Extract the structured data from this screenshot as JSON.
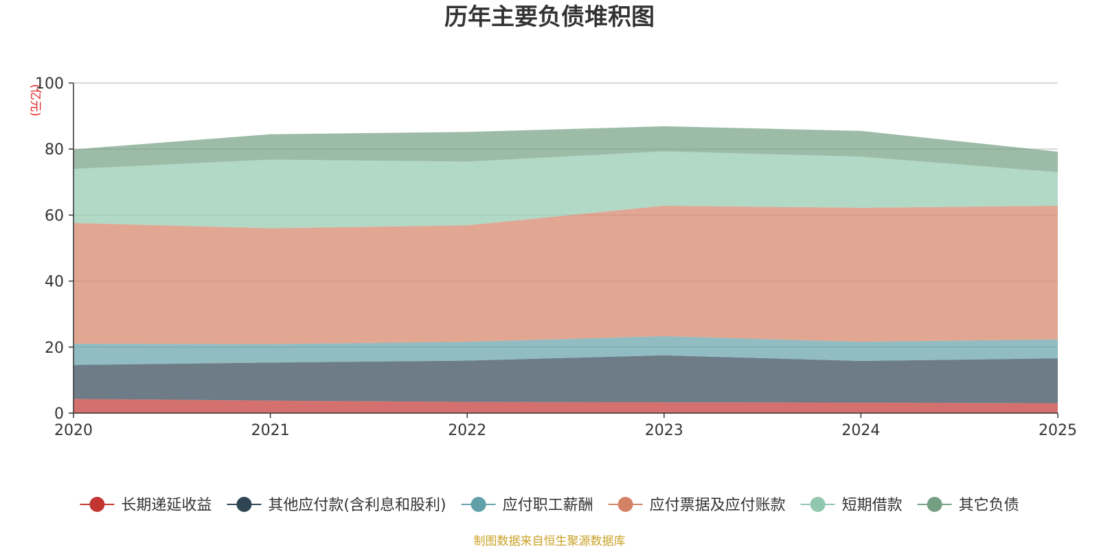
{
  "chart_data": {
    "type": "area",
    "stacked": true,
    "title": "历年主要负债堆积图",
    "unit_label": "(亿元)",
    "source_note": "制图数据来自恒生聚源数据库",
    "xlabel": "",
    "ylabel": "(亿元)",
    "ylim": [
      0,
      100
    ],
    "yticks": [
      0,
      20,
      40,
      60,
      80,
      100
    ],
    "x": [
      "2020",
      "2021",
      "2022",
      "2023",
      "2024",
      "2025"
    ],
    "grid": true,
    "legend_position": "bottom",
    "series": [
      {
        "name": "长期递延收益",
        "color": "#c23531",
        "values": [
          4.3,
          3.8,
          3.4,
          3.3,
          3.2,
          3.0
        ]
      },
      {
        "name": "其他应付款(含利息和股利)",
        "color": "#2f4554",
        "values": [
          10.3,
          11.5,
          12.5,
          14.2,
          12.6,
          13.6
        ]
      },
      {
        "name": "应付职工薪酬",
        "color": "#61a0a8",
        "values": [
          6.4,
          5.6,
          5.7,
          5.8,
          5.8,
          5.7
        ]
      },
      {
        "name": "应付票据及应付账款",
        "color": "#d48265",
        "values": [
          36.6,
          35.1,
          35.3,
          39.5,
          40.6,
          40.5
        ]
      },
      {
        "name": "短期借款",
        "color": "#91c7ae",
        "values": [
          16.4,
          20.8,
          19.3,
          16.5,
          15.5,
          10.2
        ]
      },
      {
        "name": "其它负债",
        "color": "#749f83",
        "values": [
          5.9,
          7.7,
          9.0,
          7.6,
          7.8,
          6.2
        ]
      }
    ]
  }
}
